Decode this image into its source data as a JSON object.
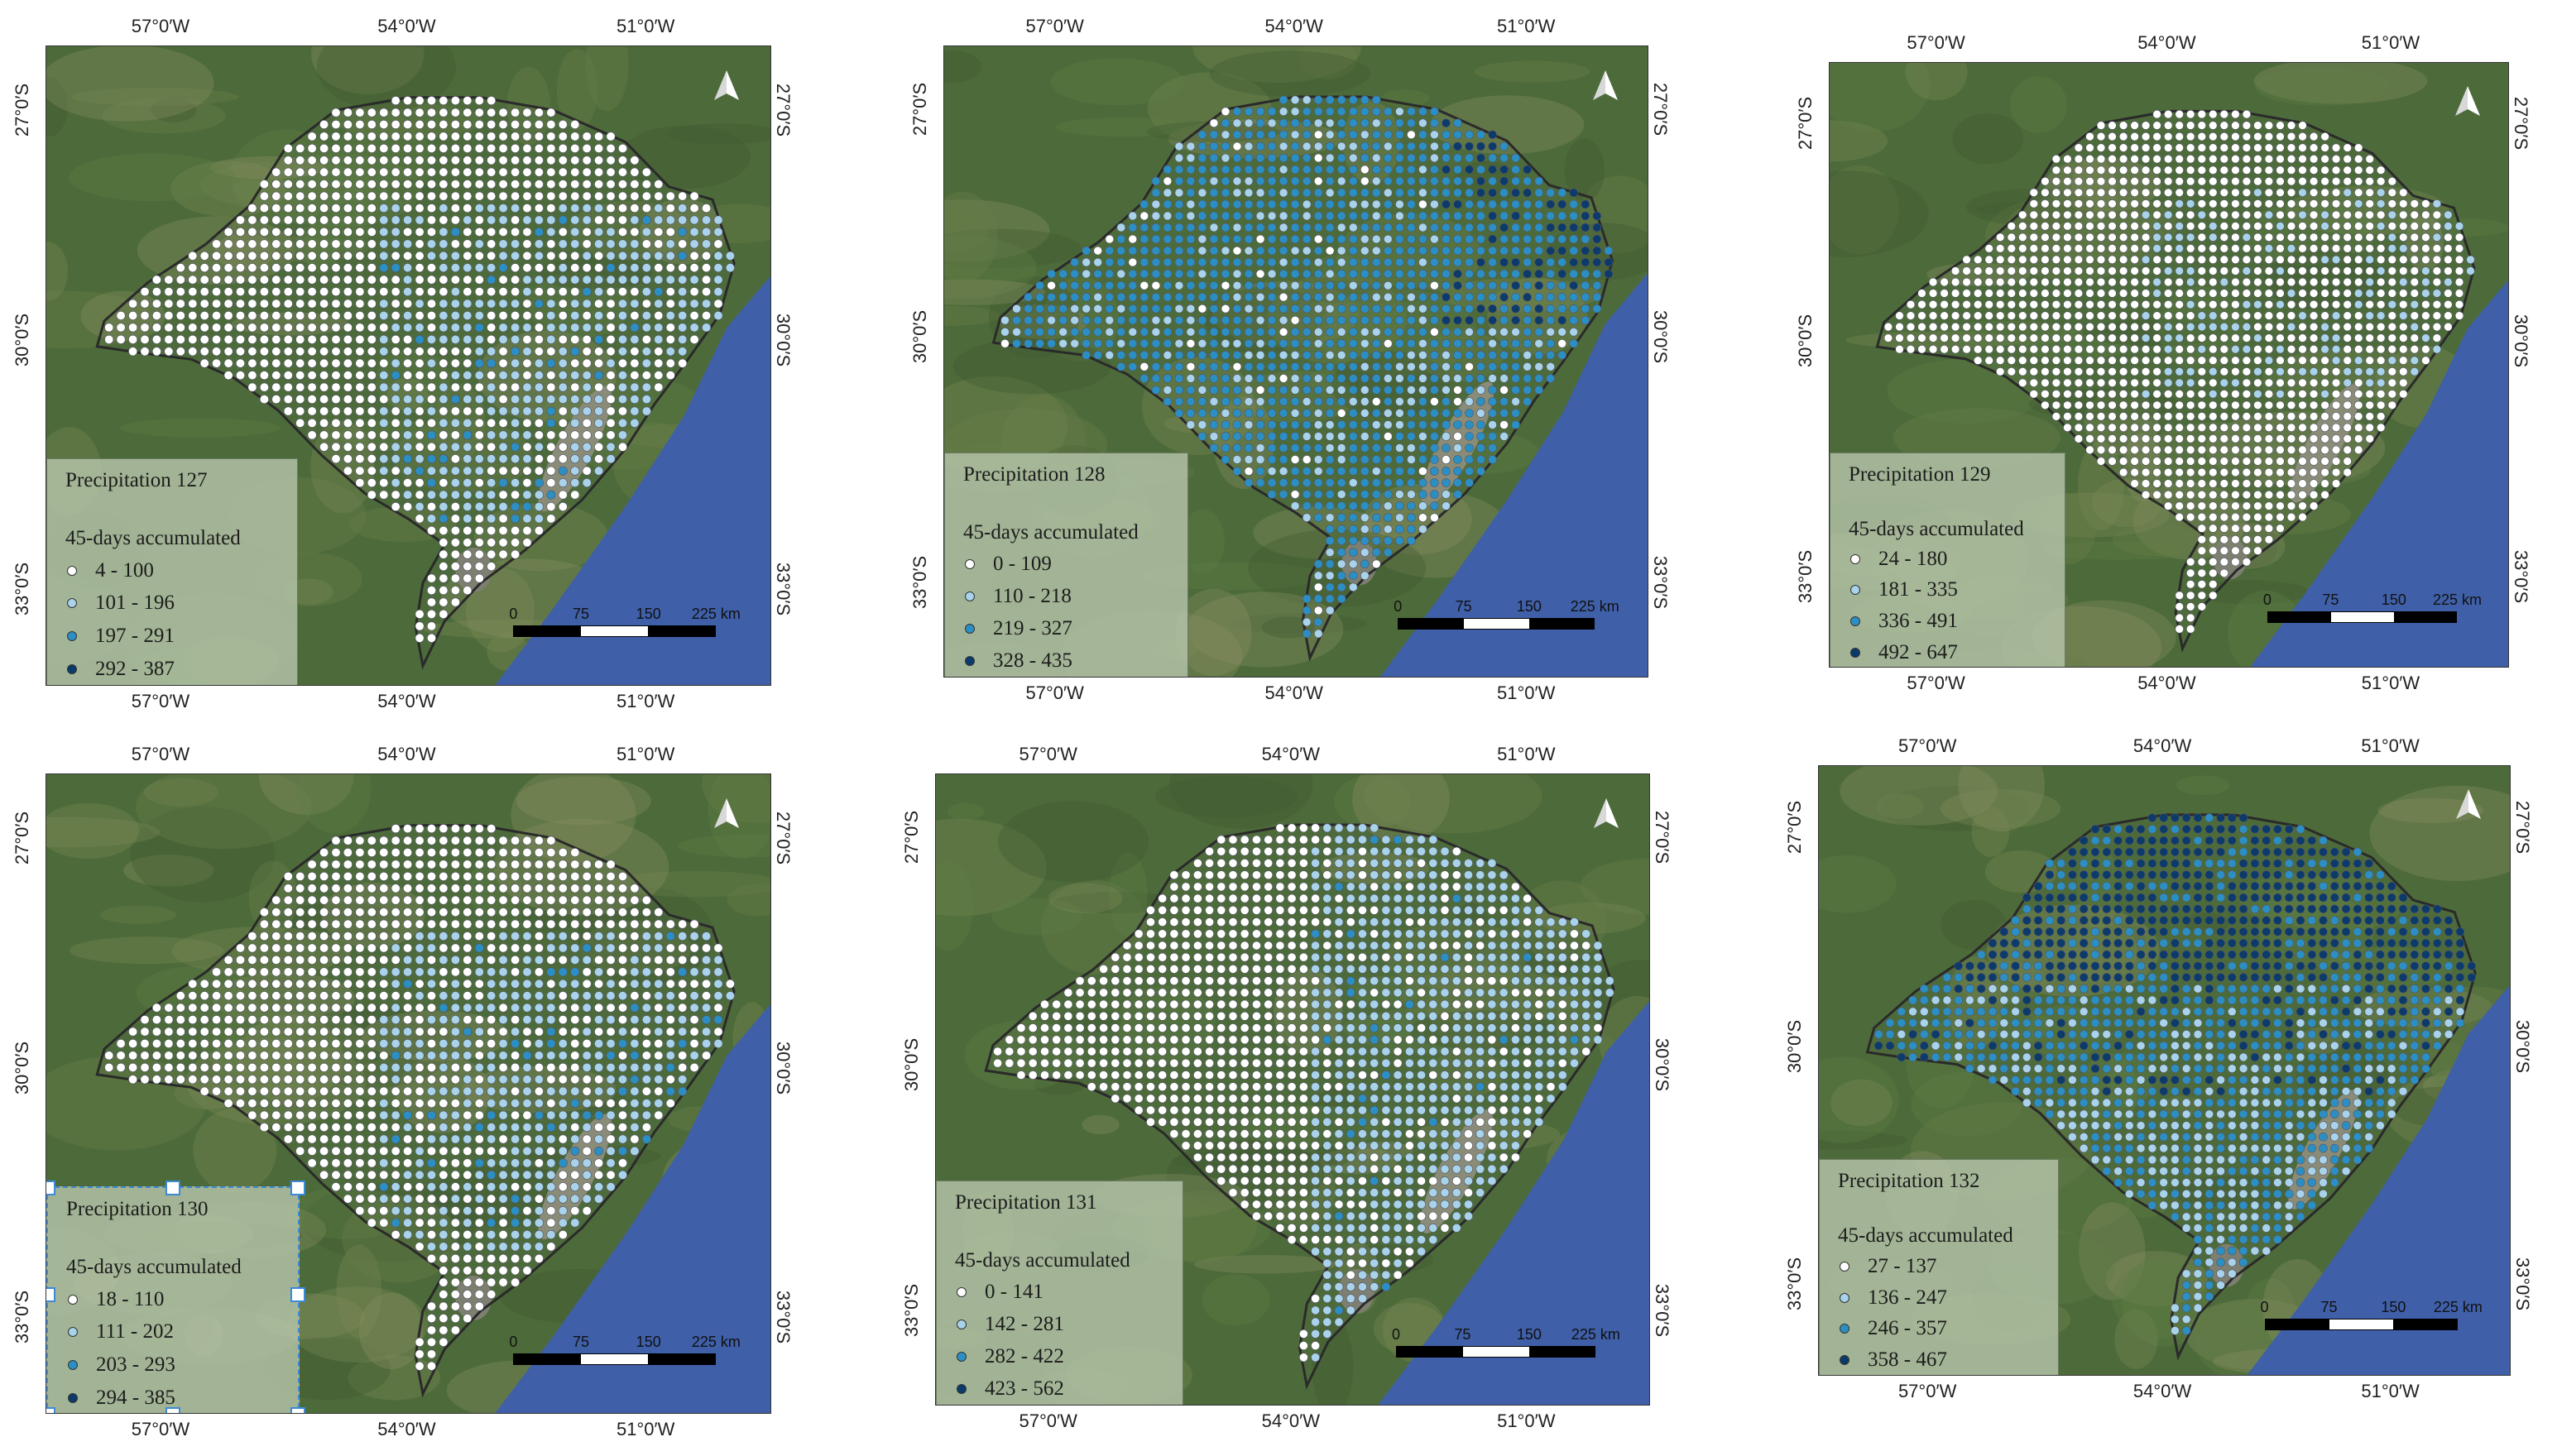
{
  "axis_labels": {
    "lon": [
      "57°0′W",
      "54°0′W",
      "51°0′W"
    ],
    "lat": [
      "27°0′S",
      "30°0′S",
      "33°0′S"
    ]
  },
  "scale_bar": {
    "ticks": [
      "0",
      "75",
      "150",
      "225 km"
    ]
  },
  "colors": {
    "class1": "#ffffff",
    "class2": "#a9d3ea",
    "class3": "#2b8fc4",
    "class4": "#0b3a6b",
    "ocean": "#3f5fa8",
    "land": "#4d6b3a",
    "legend_bg": "#b4c4aa"
  },
  "panels": [
    {
      "title": "Precipitation 127",
      "subtitle": "45-days accumulated",
      "classes": [
        "4 - 100",
        "101 - 196",
        "197 - 291",
        "292 - 387"
      ],
      "dominant_class": 2,
      "pattern": "mostly-white-east-light",
      "selected": false
    },
    {
      "title": "Precipitation 128",
      "subtitle": "45-days accumulated",
      "classes": [
        "0 - 109",
        "110 - 218",
        "219 - 327",
        "328 - 435"
      ],
      "dominant_class": 3,
      "pattern": "mostly-medium-blue",
      "selected": false
    },
    {
      "title": "Precipitation 129",
      "subtitle": "45-days accumulated",
      "classes": [
        "24 - 180",
        "181 - 335",
        "336 - 491",
        "492 - 647"
      ],
      "dominant_class": 1,
      "pattern": "mostly-white",
      "selected": false
    },
    {
      "title": "Precipitation 130",
      "subtitle": "45-days accumulated",
      "classes": [
        "18 - 110",
        "111 - 202",
        "203 - 293",
        "294 - 385"
      ],
      "dominant_class": 1,
      "pattern": "mostly-white-east-light",
      "selected": true
    },
    {
      "title": "Precipitation 131",
      "subtitle": "45-days accumulated",
      "classes": [
        "0 - 141",
        "142 - 281",
        "282 - 422",
        "423 - 562"
      ],
      "dominant_class": 1,
      "pattern": "white-west-light-east",
      "selected": false
    },
    {
      "title": "Precipitation 132",
      "subtitle": "45-days accumulated",
      "classes": [
        "27 - 137",
        "136 - 247",
        "246 - 357",
        "358 - 467"
      ],
      "dominant_class": 3,
      "pattern": "dark-north-medium-south",
      "selected": false
    }
  ]
}
